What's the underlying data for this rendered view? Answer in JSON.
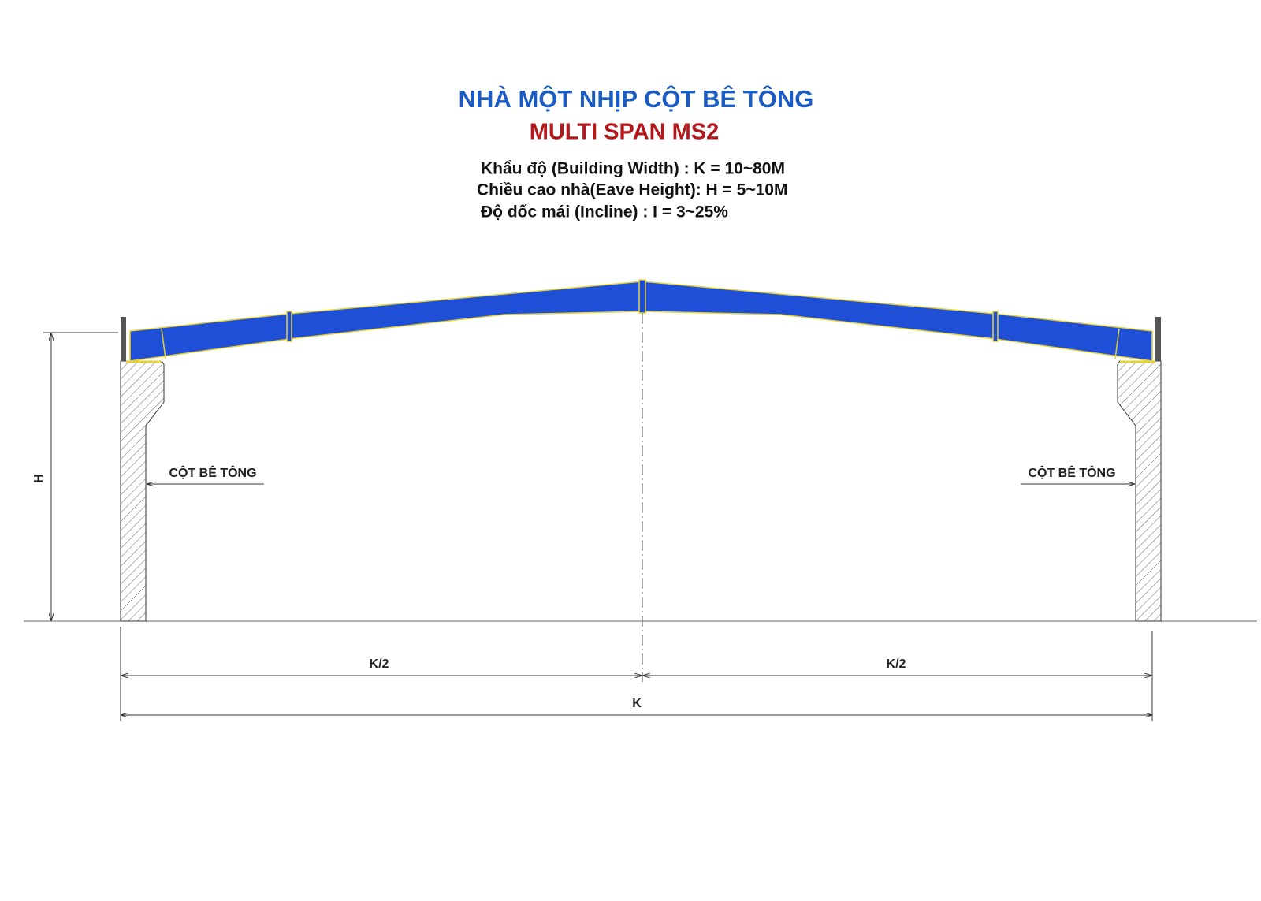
{
  "title": "NHÀ MỘT NHỊP CỘT BÊ TÔNG",
  "subtitle": "MULTI SPAN MS2",
  "specs": [
    "Khẩu độ (Building Width) : K = 10~80M",
    "Chiều cao nhà(Eave Height): H = 5~10M",
    "Độ dốc mái (Incline) : I = 3~25%"
  ],
  "labels": {
    "column_left": "CỘT BÊ TÔNG",
    "column_right": "CỘT BÊ TÔNG",
    "height": "H",
    "half_left": "K/2",
    "half_right": "K/2",
    "span": "K"
  }
}
